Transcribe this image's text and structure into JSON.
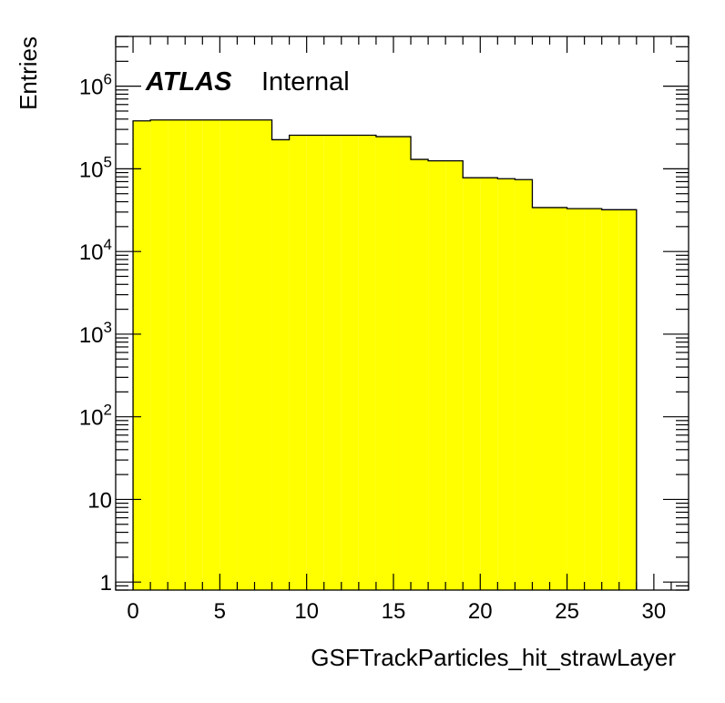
{
  "chart_data": {
    "type": "histogram",
    "xlabel": "GSFTrackParticles_hit_strawLayer",
    "ylabel": "Entries",
    "xlim": [
      -1,
      32
    ],
    "ylim": [
      0.8,
      4000000
    ],
    "yscale": "log",
    "x_ticks": [
      0,
      5,
      10,
      15,
      20,
      25,
      30
    ],
    "y_ticks": [
      {
        "value": 1,
        "base": "1",
        "exp": ""
      },
      {
        "value": 10,
        "base": "10",
        "exp": ""
      },
      {
        "value": 100,
        "base": "10",
        "exp": "2"
      },
      {
        "value": 1000,
        "base": "10",
        "exp": "3"
      },
      {
        "value": 10000,
        "base": "10",
        "exp": "4"
      },
      {
        "value": 100000,
        "base": "10",
        "exp": "5"
      },
      {
        "value": 1000000,
        "base": "10",
        "exp": "6"
      }
    ],
    "bin_edges": [
      0,
      1,
      2,
      3,
      4,
      5,
      6,
      7,
      8,
      9,
      10,
      11,
      12,
      13,
      14,
      15,
      16,
      17,
      18,
      19,
      20,
      21,
      22,
      23,
      24,
      25,
      26,
      27,
      28,
      29
    ],
    "values": [
      380000,
      390000,
      390000,
      390000,
      390000,
      390000,
      390000,
      390000,
      225000,
      255000,
      255000,
      255000,
      255000,
      255000,
      245000,
      245000,
      130000,
      125000,
      125000,
      78000,
      78000,
      76000,
      74000,
      34000,
      34000,
      33000,
      33000,
      32000,
      32000
    ],
    "fill_color": "#ffff00",
    "line_color": "#000000",
    "grid": false,
    "legend": null
  },
  "labels": {
    "atlas": "ATLAS",
    "internal": "Internal"
  }
}
